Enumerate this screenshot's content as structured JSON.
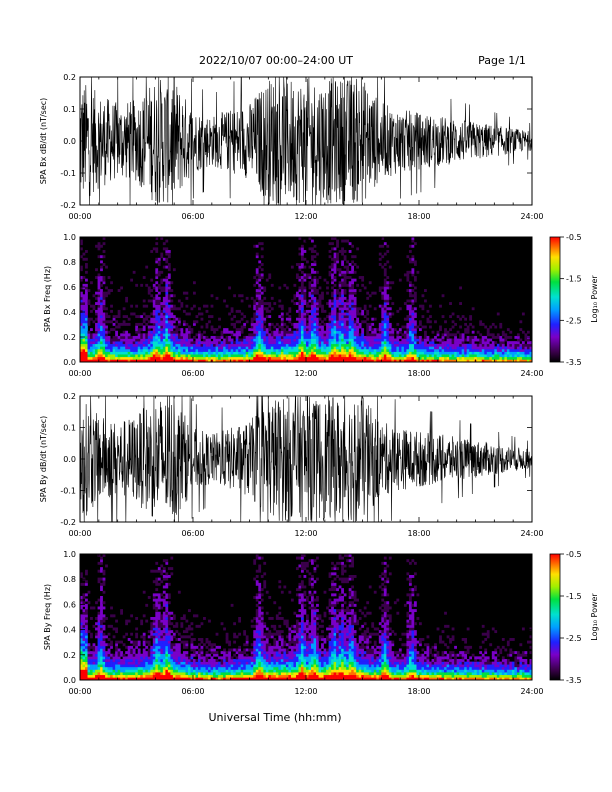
{
  "header": {
    "title": "2022/10/07  00:00–24:00 UT",
    "page": "Page 1/1"
  },
  "x_axis": {
    "title": "Universal Time (hh:mm)",
    "ticks": [
      "00:00",
      "06:00",
      "12:00",
      "18:00",
      "24:00"
    ]
  },
  "colorbar": {
    "title": "Log₁₀ Power",
    "ticks": [
      "-0.5",
      "-1.5",
      "-2.5",
      "-3.5"
    ],
    "range": [
      -3.5,
      -0.5
    ]
  },
  "colors": {
    "trace": "#000000",
    "spectrogram_background": "#000000"
  },
  "chart_data": [
    {
      "type": "line",
      "ylabel": "SPA Bx dB/dt (nT/sec)",
      "y_ticks": [
        "0.2",
        "0.1",
        "0.0",
        "-0.1",
        "-0.2"
      ],
      "xlim": [
        0,
        24
      ],
      "ylim": [
        -0.2,
        0.2
      ],
      "envelope_hours": [
        0,
        1,
        2,
        3,
        4,
        5,
        6,
        7,
        8,
        9,
        10,
        11,
        12,
        13,
        14,
        15,
        16,
        17,
        18,
        19,
        20,
        21,
        22,
        23,
        24
      ],
      "envelope_amplitude": [
        0.2,
        0.15,
        0.12,
        0.13,
        0.2,
        0.2,
        0.1,
        0.08,
        0.1,
        0.12,
        0.2,
        0.2,
        0.2,
        0.2,
        0.2,
        0.2,
        0.12,
        0.1,
        0.09,
        0.08,
        0.07,
        0.06,
        0.05,
        0.04,
        0.03
      ]
    },
    {
      "type": "heatmap",
      "ylabel": "SPA Bx Freq (Hz)",
      "y_ticks": [
        "1.0",
        "0.8",
        "0.6",
        "0.4",
        "0.2",
        "0.0"
      ],
      "xlim": [
        0,
        24
      ],
      "ylim": [
        0,
        1.0
      ],
      "value_units": "Log10 Power",
      "zlim": [
        -3.5,
        -0.5
      ]
    },
    {
      "type": "line",
      "ylabel": "SPA By dB/dt (nT/sec)",
      "y_ticks": [
        "0.2",
        "0.1",
        "0.0",
        "-0.1",
        "-0.2"
      ],
      "xlim": [
        0,
        24
      ],
      "ylim": [
        -0.2,
        0.2
      ],
      "envelope_hours": [
        0,
        1,
        2,
        3,
        4,
        5,
        6,
        7,
        8,
        9,
        10,
        11,
        12,
        13,
        14,
        15,
        16,
        17,
        18,
        19,
        20,
        21,
        22,
        23,
        24
      ],
      "envelope_amplitude": [
        0.2,
        0.14,
        0.12,
        0.14,
        0.2,
        0.2,
        0.1,
        0.08,
        0.1,
        0.12,
        0.2,
        0.2,
        0.2,
        0.2,
        0.2,
        0.2,
        0.12,
        0.1,
        0.09,
        0.08,
        0.07,
        0.06,
        0.05,
        0.04,
        0.03
      ]
    },
    {
      "type": "heatmap",
      "ylabel": "SPA By Freq (Hz)",
      "y_ticks": [
        "1.0",
        "0.8",
        "0.6",
        "0.4",
        "0.2",
        "0.0"
      ],
      "xlim": [
        0,
        24
      ],
      "ylim": [
        0,
        1.0
      ],
      "value_units": "Log10 Power",
      "zlim": [
        -3.5,
        -0.5
      ]
    }
  ]
}
